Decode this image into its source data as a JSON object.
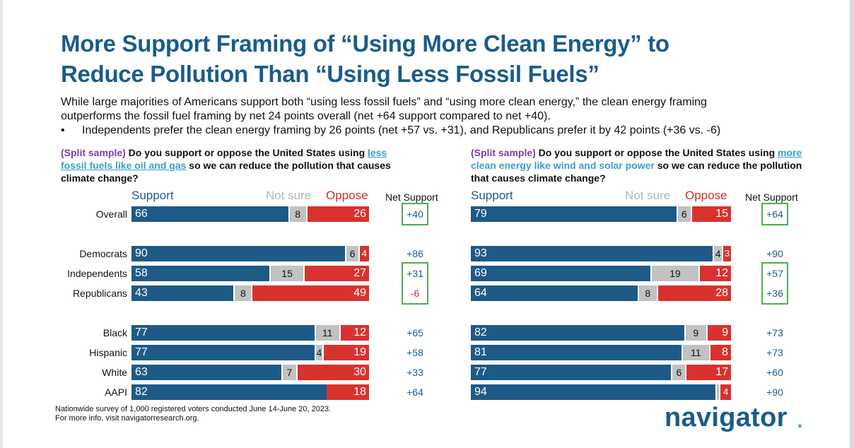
{
  "title": {
    "line1": "More Support Framing of “Using More Clean Energy” to",
    "line2": "Reduce Pollution Than “Using Less Fossil Fuels”"
  },
  "subtitle": {
    "line1": "While large majorities of Americans support both “using less fossil fuels” and “using more clean energy,” the clean energy framing",
    "line2": "outperforms the fossil fuel framing by net 24 points overall (net +64 support compared to net +40).",
    "bullet_marker": "•",
    "bullet": "Independents prefer the clean energy framing by 26 points (net +57 vs. +31), and Republicans prefer it by 42 points (+36 vs. -6)"
  },
  "questions": {
    "left": {
      "prefix": "(Split sample)",
      "part1": " Do you support or oppose the United States using ",
      "highlight": "less fossil fuels like oil and gas",
      "part2": " so we can reduce the pollution that causes climate change?"
    },
    "right": {
      "prefix": "(Split sample)",
      "part1": " Do you support or oppose the United States using ",
      "highlight_ul": "more",
      "highlight": " clean energy like wind and solar power",
      "part2": " so we can reduce the pollution that causes climate change?"
    }
  },
  "headers": {
    "support": "Support",
    "not_sure": "Not sure",
    "oppose": "Oppose",
    "net": "Net Support"
  },
  "chart_data": [
    {
      "type": "bar",
      "stacked": true,
      "orientation": "horizontal",
      "title": "less fossil fuels like oil and gas",
      "categories": [
        "Overall",
        "Democrats",
        "Independents",
        "Republicans",
        "Black",
        "Hispanic",
        "White",
        "AAPI"
      ],
      "series": [
        {
          "name": "Support",
          "values": [
            66,
            90,
            58,
            43,
            77,
            77,
            63,
            82
          ]
        },
        {
          "name": "Not sure",
          "values": [
            8,
            6,
            15,
            8,
            11,
            4,
            7,
            0
          ]
        },
        {
          "name": "Oppose",
          "values": [
            26,
            4,
            27,
            49,
            12,
            19,
            30,
            18
          ]
        }
      ],
      "net_support": [
        "+40",
        "+86",
        "+31",
        "-6",
        "+65",
        "+58",
        "+33",
        "+64"
      ],
      "highlighted_net": [
        true,
        false,
        true,
        true,
        false,
        false,
        false,
        false
      ],
      "xlim": [
        0,
        100
      ]
    },
    {
      "type": "bar",
      "stacked": true,
      "orientation": "horizontal",
      "title": "more clean energy like wind and solar power",
      "categories": [
        "Overall",
        "Democrats",
        "Independents",
        "Republicans",
        "Black",
        "Hispanic",
        "White",
        "AAPI"
      ],
      "series": [
        {
          "name": "Support",
          "values": [
            79,
            93,
            69,
            64,
            82,
            81,
            77,
            94
          ]
        },
        {
          "name": "Not sure",
          "values": [
            6,
            4,
            19,
            8,
            9,
            11,
            6,
            2
          ]
        },
        {
          "name": "Oppose",
          "values": [
            15,
            3,
            12,
            28,
            9,
            8,
            17,
            4
          ]
        }
      ],
      "net_support": [
        "+64",
        "+90",
        "+57",
        "+36",
        "+73",
        "+73",
        "+60",
        "+90"
      ],
      "highlighted_net": [
        true,
        false,
        true,
        true,
        false,
        false,
        false,
        false
      ],
      "xlim": [
        0,
        100
      ]
    }
  ],
  "footnote": {
    "line1": "Nationwide survey of 1,000 registered voters conducted June 14-June 20, 2023.",
    "line2": "For more info, visit navigatorresearch.org."
  },
  "logo": "navigator",
  "colors": {
    "support": "#1e5a86",
    "not_sure": "#c2c2c2",
    "oppose": "#d8322f",
    "title": "#1a5c8a",
    "highlight_box": "#4caf50"
  }
}
